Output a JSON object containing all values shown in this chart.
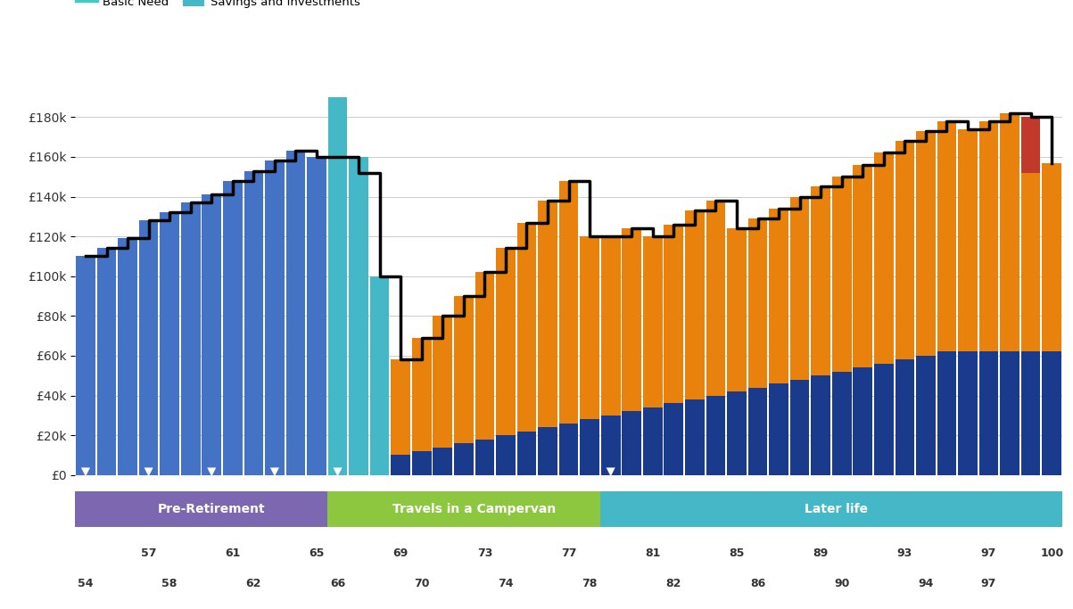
{
  "ages": [
    54,
    55,
    56,
    57,
    58,
    59,
    60,
    61,
    62,
    63,
    64,
    65,
    66,
    67,
    68,
    69,
    70,
    71,
    72,
    73,
    74,
    75,
    76,
    77,
    78,
    79,
    80,
    81,
    82,
    83,
    84,
    85,
    86,
    87,
    88,
    89,
    90,
    91,
    92,
    93,
    94,
    95,
    96,
    97,
    98,
    99,
    100
  ],
  "employment": [
    110000,
    114000,
    119000,
    128000,
    132000,
    137000,
    141000,
    148000,
    153000,
    158000,
    163000,
    160000,
    0,
    0,
    0,
    0,
    0,
    0,
    0,
    0,
    0,
    0,
    0,
    0,
    0,
    0,
    0,
    0,
    0,
    0,
    0,
    0,
    0,
    0,
    0,
    0,
    0,
    0,
    0,
    0,
    0,
    0,
    0,
    0,
    0,
    0,
    0
  ],
  "savings_investments": [
    0,
    0,
    0,
    0,
    0,
    0,
    0,
    0,
    0,
    0,
    0,
    0,
    190000,
    160000,
    100000,
    0,
    0,
    0,
    0,
    0,
    0,
    0,
    0,
    0,
    0,
    0,
    0,
    0,
    0,
    0,
    0,
    0,
    0,
    0,
    0,
    0,
    0,
    0,
    0,
    0,
    0,
    0,
    0,
    0,
    0,
    0,
    0
  ],
  "state_pensions": [
    0,
    0,
    0,
    0,
    0,
    0,
    0,
    0,
    0,
    0,
    0,
    0,
    0,
    0,
    0,
    10000,
    12000,
    14000,
    16000,
    18000,
    20000,
    22000,
    24000,
    26000,
    28000,
    30000,
    32000,
    34000,
    36000,
    38000,
    40000,
    42000,
    44000,
    46000,
    48000,
    50000,
    52000,
    54000,
    56000,
    58000,
    60000,
    62000,
    62000,
    62000,
    62000,
    62000,
    62000
  ],
  "money_purchase": [
    0,
    0,
    0,
    0,
    0,
    0,
    0,
    0,
    0,
    0,
    0,
    0,
    0,
    0,
    0,
    48000,
    57000,
    66000,
    74000,
    84000,
    94000,
    105000,
    114000,
    122000,
    92000,
    90000,
    92000,
    86000,
    90000,
    95000,
    98000,
    82000,
    85000,
    88000,
    92000,
    95000,
    98000,
    102000,
    106000,
    110000,
    113000,
    116000,
    112000,
    116000,
    120000,
    90000,
    95000
  ],
  "shortfall": [
    0,
    0,
    0,
    0,
    0,
    0,
    0,
    0,
    0,
    0,
    0,
    0,
    0,
    0,
    0,
    0,
    0,
    0,
    0,
    0,
    0,
    0,
    0,
    0,
    0,
    0,
    0,
    0,
    0,
    0,
    0,
    0,
    0,
    0,
    0,
    0,
    0,
    0,
    0,
    0,
    0,
    0,
    0,
    0,
    0,
    28000,
    0
  ],
  "total_need": [
    110000,
    114000,
    119000,
    128000,
    132000,
    137000,
    141000,
    148000,
    153000,
    158000,
    163000,
    160000,
    160000,
    152000,
    100000,
    58000,
    69000,
    80000,
    90000,
    102000,
    114000,
    127000,
    138000,
    148000,
    120000,
    120000,
    124000,
    120000,
    126000,
    133000,
    138000,
    124000,
    129000,
    134000,
    140000,
    145000,
    150000,
    156000,
    162000,
    168000,
    173000,
    178000,
    174000,
    178000,
    182000,
    180000,
    157000
  ],
  "phase_boundaries": [
    54,
    66,
    79,
    100
  ],
  "phase_labels": [
    "Pre-Retirement",
    "Travels in a Campervan",
    "Later life"
  ],
  "phase_colors": [
    "#7B68B0",
    "#8DC63F",
    "#45B8C8"
  ],
  "color_employment": "#4472C4",
  "color_savings": "#45B8C8",
  "color_state_pensions": "#1A3A8C",
  "color_money_purchase": "#E8820C",
  "color_shortfall": "#C0392B",
  "color_total_need": "#000000",
  "color_basic_need": "#45C8C8",
  "arrow_ages_indices": [
    0,
    3,
    6,
    9,
    12,
    25
  ],
  "ytick_labels": [
    "£0",
    "£20k",
    "£40k",
    "£60k",
    "£80k",
    "£100k",
    "£120k",
    "£140k",
    "£160k",
    "£180k"
  ],
  "ytick_values": [
    0,
    20000,
    40000,
    60000,
    80000,
    100000,
    120000,
    140000,
    160000,
    180000
  ],
  "upper_xtick_ages": [
    57,
    61,
    65,
    69,
    73,
    77,
    81,
    85,
    89,
    93,
    97,
    100
  ],
  "lower_xtick_ages": [
    54,
    58,
    62,
    66,
    70,
    74,
    78,
    82,
    86,
    90,
    94,
    97
  ]
}
